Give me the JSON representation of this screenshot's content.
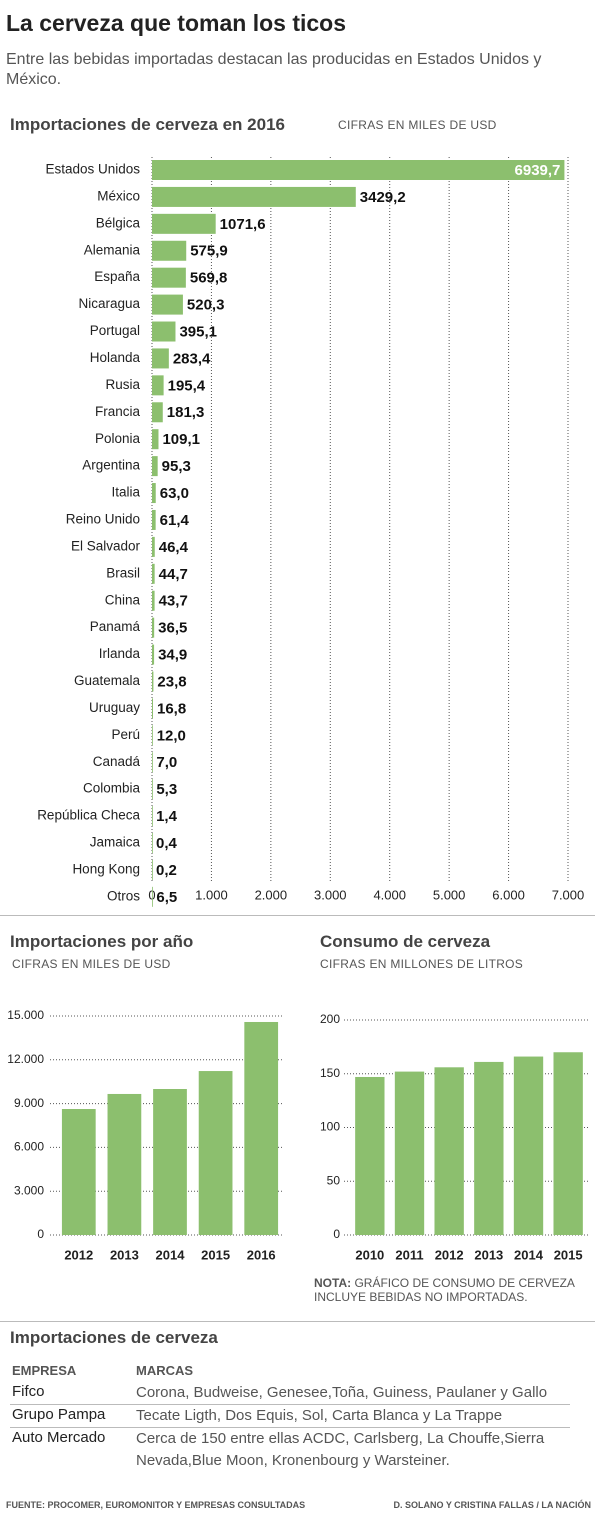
{
  "header": {
    "title": "La cerveza que toman los ticos",
    "subtitle": "Entre las bebidas importadas destacan las producidas en Estados Unidos y México."
  },
  "chart_data": [
    {
      "type": "barh",
      "title": "Importaciones de cerveza en 2016",
      "subtitle": "CIFRAS EN MILES DE USD",
      "color": "#8cbf6e",
      "grid": true,
      "categories": [
        "Estados Unidos",
        "México",
        "Bélgica",
        "Alemania",
        "España",
        "Nicaragua",
        "Portugal",
        "Holanda",
        "Rusia",
        "Francia",
        "Polonia",
        "Argentina",
        "Italia",
        "Reino Unido",
        "El Salvador",
        "Brasil",
        "China",
        "Panamá",
        "Irlanda",
        "Guatemala",
        "Uruguay",
        "Perú",
        "Canadá",
        "Colombia",
        "República Checa",
        "Jamaica",
        "Hong Kong",
        "Otros"
      ],
      "values": [
        6939.7,
        3429.2,
        1071.6,
        575.9,
        569.8,
        520.3,
        395.1,
        283.4,
        195.4,
        181.3,
        109.1,
        95.3,
        63.0,
        61.4,
        46.4,
        44.7,
        43.7,
        36.5,
        34.9,
        23.8,
        16.8,
        12.0,
        7.0,
        5.3,
        1.4,
        0.4,
        0.2,
        6.5
      ],
      "value_labels": [
        "6939,7",
        "3429,2",
        "1071,6",
        "575,9",
        "569,8",
        "520,3",
        "395,1",
        "283,4",
        "195,4",
        "181,3",
        "109,1",
        "95,3",
        "63,0",
        "61,4",
        "46,4",
        "44,7",
        "43,7",
        "36,5",
        "34,9",
        "23,8",
        "16,8",
        "12,0",
        "7,0",
        "5,3",
        "1,4",
        "0,4",
        "0,2",
        "6,5"
      ],
      "xlim": [
        0,
        7000
      ],
      "xticks": [
        0,
        {
          "value": 1000,
          "label": "1.000"
        },
        {
          "value": 2000,
          "label": "2.000"
        },
        {
          "value": 3000,
          "label": "3.000"
        },
        {
          "value": 4000,
          "label": "4.000"
        },
        {
          "value": 5000,
          "label": "5.000"
        },
        {
          "value": 6000,
          "label": "6.000"
        },
        {
          "value": 7000,
          "label": "7.000"
        }
      ]
    },
    {
      "type": "bar",
      "title": "Importaciones por año",
      "subtitle": "CIFRAS EN MILES DE USD",
      "color": "#8cbf6e",
      "grid": true,
      "categories": [
        "2012",
        "2013",
        "2014",
        "2015",
        "2016"
      ],
      "values": [
        8630,
        9660,
        10000,
        11230,
        14590
      ],
      "ylim": [
        0,
        15000
      ],
      "yticks": [
        0,
        {
          "value": 3000,
          "label": "3.000"
        },
        {
          "value": 6000,
          "label": "6.000"
        },
        {
          "value": 9000,
          "label": "9.000"
        },
        {
          "value": 12000,
          "label": "12.000"
        },
        {
          "value": 15000,
          "label": "15.000"
        }
      ]
    },
    {
      "type": "bar",
      "title": "Consumo de cerveza",
      "subtitle": "CIFRAS EN MILLONES DE LITROS",
      "color": "#8cbf6e",
      "grid": true,
      "categories": [
        "2010",
        "2011",
        "2012",
        "2013",
        "2014",
        "2015"
      ],
      "values": [
        147,
        152,
        156,
        161,
        166,
        170
      ],
      "ylim": [
        0,
        200
      ],
      "yticks": [
        0,
        50,
        100,
        150,
        200
      ],
      "note_label": "NOTA:",
      "note": "GRÁFICO DE CONSUMO DE CERVEZA INCLUYE BEBIDAS NO IMPORTADAS."
    }
  ],
  "table": {
    "title": "Importaciones de cerveza",
    "header": [
      "EMPRESA",
      "MARCAS"
    ],
    "rows": [
      [
        "Fifco",
        "Corona, Budweise, Genesee,Toña, Guiness, Paulaner y Gallo"
      ],
      [
        "Grupo Pampa",
        "Tecate Ligth, Dos Equis, Sol, Carta Blanca y La Trappe"
      ],
      [
        "Auto Mercado",
        "Cerca de 150 entre ellas ACDC, Carlsberg, La Chouffe,Sierra Nevada,Blue Moon, Kronenbourg y Warsteiner."
      ]
    ]
  },
  "footer": {
    "source": "FUENTE: PROCOMER, EUROMONITOR Y EMPRESAS CONSULTADAS",
    "credit": "D. SOLANO Y CRISTINA FALLAS / LA NACIÓN"
  }
}
